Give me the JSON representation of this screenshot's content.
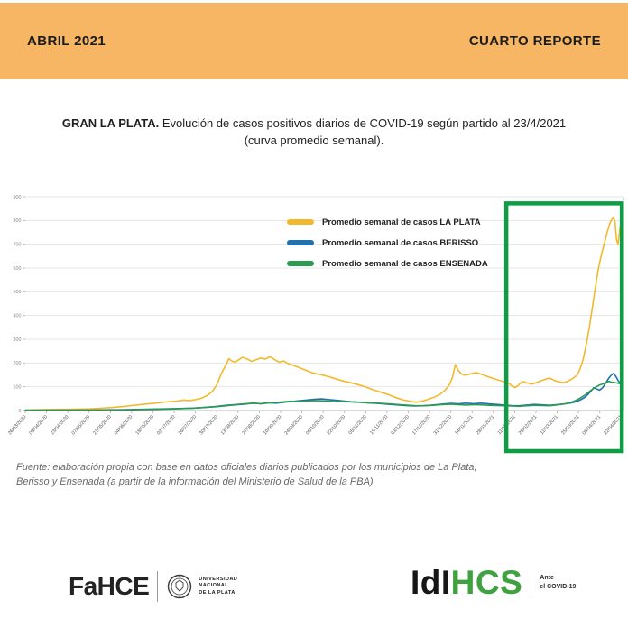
{
  "header": {
    "left": "ABRIL 2021",
    "right": "CUARTO REPORTE",
    "bg_color": "#F6B663"
  },
  "title": {
    "bold": "GRAN LA PLATA.",
    "rest": " Evolución de casos positivos diarios de COVID-19 según partido al 23/4/2021",
    "line2": "(curva promedio semanal)."
  },
  "chart_data": {
    "type": "line",
    "title": "",
    "xlabel": "",
    "ylabel": "",
    "ylim": [
      0,
      900
    ],
    "yticks": [
      0,
      100,
      200,
      300,
      400,
      500,
      600,
      700,
      800,
      900
    ],
    "grid": true,
    "legend_position": "top-center-inside",
    "x_unit": "days since 26/03/2020",
    "x_tick_interval_days": 14,
    "x_tick_labels": [
      "26/03/2020",
      "09/04/2020",
      "23/04/2020",
      "07/05/2020",
      "21/05/2020",
      "04/06/2020",
      "18/06/2020",
      "02/07/2020",
      "16/07/2020",
      "30/07/2020",
      "13/08/2020",
      "27/08/2020",
      "10/09/2020",
      "24/09/2020",
      "08/10/2020",
      "22/10/2020",
      "05/11/2020",
      "19/11/2020",
      "03/12/2020",
      "17/12/2020",
      "31/12/2020",
      "14/01/2021",
      "28/01/2021",
      "11/02/2021",
      "25/02/2021",
      "11/03/2021",
      "25/03/2021",
      "08/04/2021",
      "22/04/2021"
    ],
    "highlight_box": {
      "from_day": 316.5,
      "to_day": 392.5,
      "top_value": 872,
      "color": "#0E9C44"
    },
    "series": [
      {
        "name": "Promedio semanal de casos LA PLATA",
        "color": "#F2B92C",
        "points": [
          [
            0,
            2
          ],
          [
            7,
            3
          ],
          [
            14,
            4
          ],
          [
            21,
            5
          ],
          [
            28,
            5
          ],
          [
            35,
            6
          ],
          [
            42,
            7
          ],
          [
            49,
            9
          ],
          [
            56,
            12
          ],
          [
            63,
            16
          ],
          [
            70,
            21
          ],
          [
            77,
            26
          ],
          [
            84,
            30
          ],
          [
            90,
            34
          ],
          [
            95,
            38
          ],
          [
            100,
            40
          ],
          [
            104,
            44
          ],
          [
            108,
            42
          ],
          [
            112,
            46
          ],
          [
            116,
            52
          ],
          [
            120,
            64
          ],
          [
            123,
            80
          ],
          [
            126,
            108
          ],
          [
            129,
            155
          ],
          [
            132,
            192
          ],
          [
            134,
            218
          ],
          [
            136,
            208
          ],
          [
            138,
            204
          ],
          [
            140,
            212
          ],
          [
            143,
            224
          ],
          [
            146,
            217
          ],
          [
            149,
            207
          ],
          [
            152,
            214
          ],
          [
            155,
            221
          ],
          [
            158,
            216
          ],
          [
            161,
            227
          ],
          [
            164,
            214
          ],
          [
            167,
            204
          ],
          [
            170,
            209
          ],
          [
            173,
            197
          ],
          [
            176,
            191
          ],
          [
            180,
            181
          ],
          [
            184,
            171
          ],
          [
            188,
            161
          ],
          [
            192,
            154
          ],
          [
            196,
            149
          ],
          [
            200,
            142
          ],
          [
            204,
            134
          ],
          [
            209,
            124
          ],
          [
            214,
            117
          ],
          [
            219,
            109
          ],
          [
            224,
            99
          ],
          [
            229,
            87
          ],
          [
            234,
            77
          ],
          [
            239,
            67
          ],
          [
            244,
            54
          ],
          [
            249,
            44
          ],
          [
            253,
            39
          ],
          [
            257,
            35
          ],
          [
            261,
            39
          ],
          [
            265,
            47
          ],
          [
            269,
            56
          ],
          [
            273,
            69
          ],
          [
            276,
            84
          ],
          [
            279,
            108
          ],
          [
            281,
            138
          ],
          [
            283,
            193
          ],
          [
            285,
            168
          ],
          [
            287,
            154
          ],
          [
            289,
            149
          ],
          [
            291,
            151
          ],
          [
            294,
            156
          ],
          [
            297,
            159
          ],
          [
            300,
            153
          ],
          [
            303,
            146
          ],
          [
            306,
            139
          ],
          [
            309,
            133
          ],
          [
            312,
            127
          ],
          [
            315,
            121
          ],
          [
            318,
            115
          ],
          [
            320,
            104
          ],
          [
            322,
            96
          ],
          [
            324,
            104
          ],
          [
            327,
            122
          ],
          [
            330,
            117
          ],
          [
            333,
            111
          ],
          [
            336,
            117
          ],
          [
            339,
            124
          ],
          [
            342,
            131
          ],
          [
            345,
            137
          ],
          [
            348,
            127
          ],
          [
            351,
            121
          ],
          [
            354,
            117
          ],
          [
            357,
            123
          ],
          [
            360,
            134
          ],
          [
            363,
            149
          ],
          [
            365,
            174
          ],
          [
            367,
            214
          ],
          [
            369,
            274
          ],
          [
            371,
            344
          ],
          [
            373,
            428
          ],
          [
            375,
            514
          ],
          [
            377,
            594
          ],
          [
            379,
            654
          ],
          [
            381,
            704
          ],
          [
            383,
            754
          ],
          [
            385,
            794
          ],
          [
            387,
            814
          ],
          [
            388,
            794
          ],
          [
            389,
            719
          ],
          [
            390,
            699
          ],
          [
            391,
            754
          ],
          [
            392,
            799
          ],
          [
            393,
            769
          ]
        ]
      },
      {
        "name": "Promedio semanal de casos BERISSO",
        "color": "#2171AE",
        "points": [
          [
            0,
            1
          ],
          [
            14,
            1
          ],
          [
            28,
            2
          ],
          [
            42,
            2
          ],
          [
            56,
            3
          ],
          [
            70,
            4
          ],
          [
            84,
            6
          ],
          [
            98,
            8
          ],
          [
            110,
            10
          ],
          [
            118,
            13
          ],
          [
            125,
            16
          ],
          [
            132,
            20
          ],
          [
            138,
            24
          ],
          [
            144,
            27
          ],
          [
            150,
            31
          ],
          [
            155,
            29
          ],
          [
            160,
            33
          ],
          [
            165,
            31
          ],
          [
            170,
            35
          ],
          [
            175,
            38
          ],
          [
            180,
            41
          ],
          [
            185,
            44
          ],
          [
            190,
            47
          ],
          [
            195,
            49
          ],
          [
            200,
            46
          ],
          [
            205,
            43
          ],
          [
            210,
            40
          ],
          [
            215,
            37
          ],
          [
            220,
            35
          ],
          [
            226,
            32
          ],
          [
            232,
            30
          ],
          [
            238,
            27
          ],
          [
            244,
            24
          ],
          [
            250,
            21
          ],
          [
            256,
            19
          ],
          [
            262,
            20
          ],
          [
            268,
            23
          ],
          [
            274,
            27
          ],
          [
            280,
            30
          ],
          [
            285,
            28
          ],
          [
            290,
            31
          ],
          [
            295,
            29
          ],
          [
            300,
            31
          ],
          [
            305,
            28
          ],
          [
            310,
            26
          ],
          [
            315,
            23
          ],
          [
            320,
            21
          ],
          [
            325,
            20
          ],
          [
            330,
            23
          ],
          [
            335,
            26
          ],
          [
            340,
            24
          ],
          [
            345,
            22
          ],
          [
            350,
            25
          ],
          [
            355,
            28
          ],
          [
            359,
            32
          ],
          [
            362,
            37
          ],
          [
            365,
            44
          ],
          [
            368,
            55
          ],
          [
            370,
            66
          ],
          [
            372,
            80
          ],
          [
            374,
            96
          ],
          [
            376,
            90
          ],
          [
            378,
            86
          ],
          [
            380,
            97
          ],
          [
            382,
            117
          ],
          [
            384,
            137
          ],
          [
            386,
            152
          ],
          [
            387,
            156
          ],
          [
            388,
            149
          ],
          [
            389,
            139
          ],
          [
            390,
            127
          ],
          [
            391,
            119
          ],
          [
            392,
            116
          ],
          [
            393,
            120
          ]
        ]
      },
      {
        "name": "Promedio semanal de casos ENSENADA",
        "color": "#2B9B4F",
        "points": [
          [
            0,
            1
          ],
          [
            14,
            1
          ],
          [
            28,
            1
          ],
          [
            42,
            2
          ],
          [
            56,
            2
          ],
          [
            70,
            3
          ],
          [
            84,
            5
          ],
          [
            98,
            7
          ],
          [
            110,
            10
          ],
          [
            118,
            13
          ],
          [
            125,
            17
          ],
          [
            132,
            22
          ],
          [
            138,
            25
          ],
          [
            144,
            28
          ],
          [
            150,
            31
          ],
          [
            155,
            29
          ],
          [
            160,
            32
          ],
          [
            165,
            34
          ],
          [
            170,
            37
          ],
          [
            175,
            39
          ],
          [
            180,
            38
          ],
          [
            185,
            40
          ],
          [
            190,
            42
          ],
          [
            195,
            41
          ],
          [
            200,
            39
          ],
          [
            205,
            37
          ],
          [
            210,
            38
          ],
          [
            215,
            36
          ],
          [
            220,
            35
          ],
          [
            226,
            33
          ],
          [
            232,
            31
          ],
          [
            238,
            29
          ],
          [
            244,
            26
          ],
          [
            250,
            23
          ],
          [
            256,
            21
          ],
          [
            262,
            20
          ],
          [
            268,
            22
          ],
          [
            274,
            25
          ],
          [
            280,
            27
          ],
          [
            285,
            25
          ],
          [
            290,
            23
          ],
          [
            295,
            25
          ],
          [
            300,
            24
          ],
          [
            305,
            22
          ],
          [
            310,
            21
          ],
          [
            315,
            20
          ],
          [
            320,
            19
          ],
          [
            325,
            18
          ],
          [
            330,
            20
          ],
          [
            335,
            22
          ],
          [
            340,
            21
          ],
          [
            345,
            20
          ],
          [
            350,
            24
          ],
          [
            355,
            28
          ],
          [
            359,
            34
          ],
          [
            362,
            42
          ],
          [
            365,
            52
          ],
          [
            368,
            64
          ],
          [
            370,
            74
          ],
          [
            372,
            84
          ],
          [
            374,
            93
          ],
          [
            376,
            101
          ],
          [
            378,
            108
          ],
          [
            380,
            112
          ],
          [
            382,
            117
          ],
          [
            384,
            123
          ],
          [
            386,
            119
          ],
          [
            388,
            117
          ],
          [
            390,
            115
          ],
          [
            392,
            112
          ],
          [
            393,
            111
          ]
        ]
      }
    ]
  },
  "source": {
    "line1": "Fuente: elaboración propia con base en datos oficiales diarios publicados por los municipios de La Plata,",
    "line2": "Berisso y Ensenada (a partir de la información del Ministerio de Salud de la PBA)"
  },
  "footer": {
    "fahce": "FaHCE",
    "unlp_lines": [
      "UNIVERSIDAD",
      "NACIONAL",
      "DE LA PLATA"
    ],
    "idihcs_black": "IdI",
    "idihcs_green": "HCS",
    "idihcs_green_color": "#3FA13F",
    "covid_line1": "Ante",
    "covid_line2": "el COVID-19"
  }
}
